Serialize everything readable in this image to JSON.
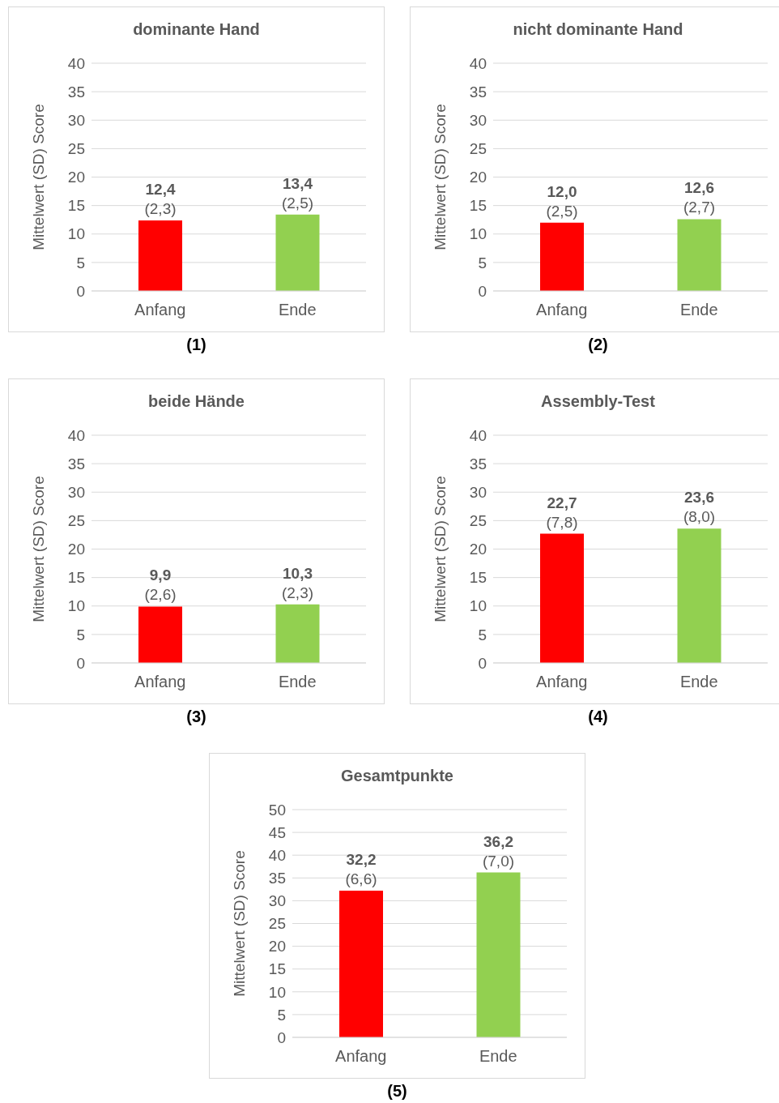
{
  "chart_data": [
    {
      "type": "bar",
      "title": "dominante Hand",
      "ylabel": "Mittelwert (SD) Score",
      "categories": [
        "Anfang",
        "Ende"
      ],
      "values": [
        12.4,
        13.4
      ],
      "colors": [
        "#ff0000",
        "#92d050"
      ],
      "value_labels": [
        "12,4",
        "13,4"
      ],
      "ylim": [
        0,
        40
      ],
      "yticks": [
        0,
        5,
        10,
        15,
        20,
        25,
        30,
        35,
        40
      ],
      "grid": "y",
      "legend": false,
      "annotations": [
        {
          "text": "(2,3)",
          "x": "Anfang",
          "y": 12.4
        },
        {
          "text": "(2,5)",
          "x": "Ende",
          "y": 13.4
        },
        "(1)"
      ]
    },
    {
      "type": "bar",
      "title": "nicht dominante Hand",
      "ylabel": "Mittelwert (SD) Score",
      "categories": [
        "Anfang",
        "Ende"
      ],
      "values": [
        12.0,
        12.6
      ],
      "colors": [
        "#ff0000",
        "#92d050"
      ],
      "value_labels": [
        "12,0",
        "12,6"
      ],
      "ylim": [
        0,
        40
      ],
      "yticks": [
        0,
        5,
        10,
        15,
        20,
        25,
        30,
        35,
        40
      ],
      "grid": "y",
      "legend": false,
      "annotations": [
        {
          "text": "(2,5)",
          "x": "Anfang",
          "y": 12.0
        },
        {
          "text": "(2,7)",
          "x": "Ende",
          "y": 12.6
        },
        "(2)"
      ]
    },
    {
      "type": "bar",
      "title": "beide Hände",
      "ylabel": "Mittelwert (SD) Score",
      "categories": [
        "Anfang",
        "Ende"
      ],
      "values": [
        9.9,
        10.3
      ],
      "colors": [
        "#ff0000",
        "#92d050"
      ],
      "value_labels": [
        "9,9",
        "10,3"
      ],
      "ylim": [
        0,
        40
      ],
      "yticks": [
        0,
        5,
        10,
        15,
        20,
        25,
        30,
        35,
        40
      ],
      "grid": "y",
      "legend": false,
      "annotations": [
        {
          "text": "(2,6)",
          "x": "Anfang",
          "y": 9.9
        },
        {
          "text": "(2,3)",
          "x": "Ende",
          "y": 10.3
        },
        "(3)"
      ]
    },
    {
      "type": "bar",
      "title": "Assembly-Test",
      "ylabel": "Mittelwert (SD) Score",
      "categories": [
        "Anfang",
        "Ende"
      ],
      "values": [
        22.7,
        23.6
      ],
      "colors": [
        "#ff0000",
        "#92d050"
      ],
      "value_labels": [
        "22,7",
        "23,6"
      ],
      "ylim": [
        0,
        40
      ],
      "yticks": [
        0,
        5,
        10,
        15,
        20,
        25,
        30,
        35,
        40
      ],
      "grid": "y",
      "legend": false,
      "annotations": [
        {
          "text": "(7,8)",
          "x": "Anfang",
          "y": 22.7
        },
        {
          "text": "(8,0)",
          "x": "Ende",
          "y": 23.6
        },
        "(4)"
      ]
    },
    {
      "type": "bar",
      "title": "Gesamtpunkte",
      "ylabel": "Mittelwert (SD) Score",
      "categories": [
        "Anfang",
        "Ende"
      ],
      "values": [
        32.2,
        36.2
      ],
      "colors": [
        "#ff0000",
        "#92d050"
      ],
      "value_labels": [
        "32,2",
        "36,2"
      ],
      "ylim": [
        0,
        50
      ],
      "yticks": [
        0,
        5,
        10,
        15,
        20,
        25,
        30,
        35,
        40,
        45,
        50
      ],
      "grid": "y",
      "legend": false,
      "annotations": [
        {
          "text": "(6,6)",
          "x": "Anfang",
          "y": 32.2
        },
        {
          "text": "(7,0)",
          "x": "Ende",
          "y": 36.2
        },
        "(5)"
      ]
    }
  ]
}
